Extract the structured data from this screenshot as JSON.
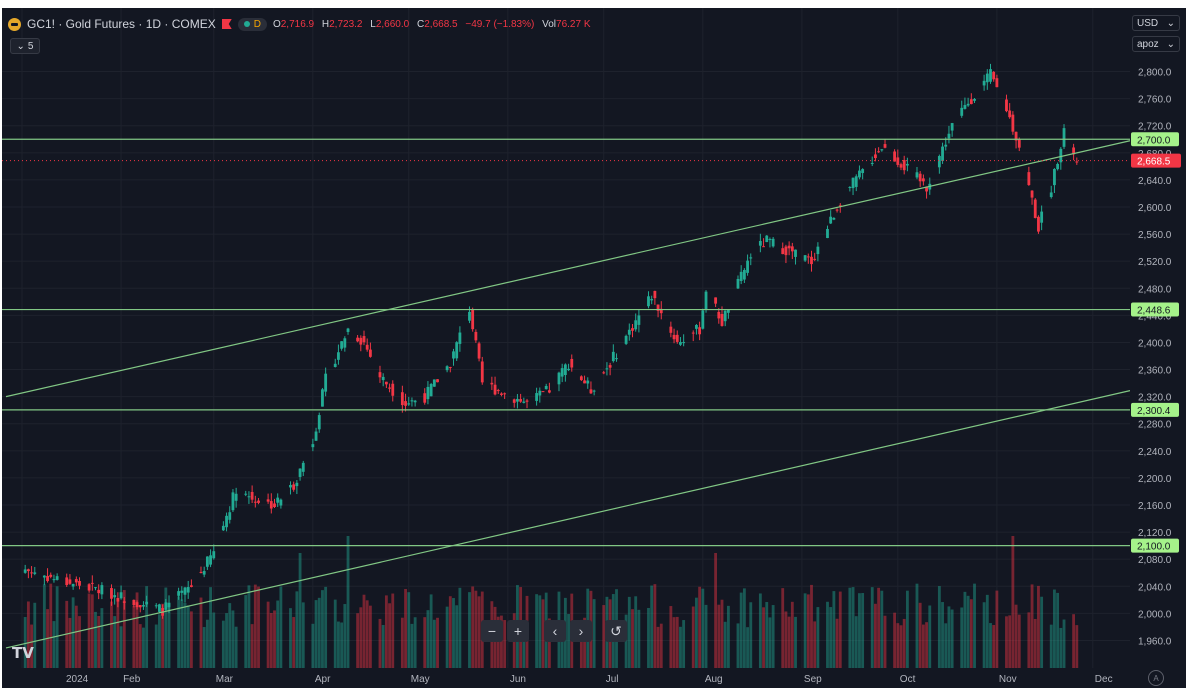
{
  "header": {
    "title": "GC1! · Gold Futures · 1D · COMEX",
    "status": "D",
    "ohlc": [
      {
        "label": "O",
        "value": "2,716.9"
      },
      {
        "label": "H",
        "value": "2,723.2"
      },
      {
        "label": "L",
        "value": "2,660.0"
      },
      {
        "label": "C",
        "value": "2,668.5"
      },
      {
        "label": "",
        "value": "−49.7 (−1.83%)"
      }
    ],
    "vol_label": "Vol",
    "vol_value": "76.27 K",
    "indicator_count": "5"
  },
  "axis_controls": {
    "currency": "USD",
    "mode": "apoz"
  },
  "colors": {
    "background": "#131722",
    "up": "#22ab94",
    "down": "#f23645",
    "line": "#81c784",
    "label": "#a5f28a"
  },
  "icons": [
    "gold-coin-icon",
    "flag-icon",
    "status-dot-icon",
    "zoom-out-icon",
    "zoom-in-icon",
    "scroll-left-icon",
    "scroll-right-icon",
    "reset-icon",
    "tradingview-logo-icon",
    "settings-icon"
  ],
  "controls": {
    "zoom_out": "−",
    "zoom_in": "+",
    "left": "‹",
    "right": "›",
    "reset": "↺"
  },
  "logo": "TV",
  "chart_data": {
    "type": "candlestick",
    "title": "GC1! · Gold Futures · 1D · COMEX",
    "y_axis": {
      "min": 1940,
      "max": 2820,
      "ticks": [
        "1,960.0",
        "2,000.0",
        "2,040.0",
        "2,080.0",
        "2,120.0",
        "2,160.0",
        "2,200.0",
        "2,240.0",
        "2,280.0",
        "2,320.0",
        "2,360.0",
        "2,400.0",
        "2,440.0",
        "2,480.0",
        "2,520.0",
        "2,560.0",
        "2,600.0",
        "2,640.0",
        "2,680.0",
        "2,720.0",
        "2,760.0",
        "2,800.0"
      ]
    },
    "x_axis": {
      "labels": [
        "2024",
        "Feb",
        "Mar",
        "Apr",
        "May",
        "Jun",
        "Jul",
        "Aug",
        "Sep",
        "Oct",
        "Nov",
        "Dec"
      ]
    },
    "last_price": "2,668.5",
    "horizontal_levels": [
      {
        "value": 2700.0,
        "label": "2,700.0"
      },
      {
        "value": 2448.6,
        "label": "2,448.6"
      },
      {
        "value": 2300.4,
        "label": "2,300.4"
      },
      {
        "value": 2100.0,
        "label": "2,100.0"
      }
    ],
    "trend_lines": [
      {
        "from": [
          "2023-12-27",
          2320
        ],
        "to": [
          "2024-11-27",
          2681
        ]
      },
      {
        "from": [
          "2023-12-27",
          1949
        ],
        "to": [
          "2024-11-27",
          2312
        ]
      }
    ],
    "price_path": [
      [
        "2024-01-02",
        2065
      ],
      [
        "2024-01-12",
        2050
      ],
      [
        "2024-01-25",
        2035
      ],
      [
        "2024-02-14",
        2005
      ],
      [
        "2024-02-23",
        2040
      ],
      [
        "2024-03-01",
        2090
      ],
      [
        "2024-03-08",
        2185
      ],
      [
        "2024-03-13",
        2170
      ],
      [
        "2024-03-20",
        2160
      ],
      [
        "2024-03-26",
        2190
      ],
      [
        "2024-04-01",
        2255
      ],
      [
        "2024-04-05",
        2345
      ],
      [
        "2024-04-12",
        2420
      ],
      [
        "2024-04-17",
        2400
      ],
      [
        "2024-04-22",
        2350
      ],
      [
        "2024-04-30",
        2310
      ],
      [
        "2024-05-06",
        2320
      ],
      [
        "2024-05-14",
        2370
      ],
      [
        "2024-05-20",
        2450
      ],
      [
        "2024-05-24",
        2340
      ],
      [
        "2024-06-07",
        2310
      ],
      [
        "2024-06-14",
        2330
      ],
      [
        "2024-06-20",
        2370
      ],
      [
        "2024-06-27",
        2330
      ],
      [
        "2024-07-03",
        2370
      ],
      [
        "2024-07-16",
        2470
      ],
      [
        "2024-07-24",
        2400
      ],
      [
        "2024-07-31",
        2420
      ],
      [
        "2024-08-02",
        2480
      ],
      [
        "2024-08-07",
        2430
      ],
      [
        "2024-08-16",
        2530
      ],
      [
        "2024-08-21",
        2550
      ],
      [
        "2024-09-04",
        2520
      ],
      [
        "2024-09-13",
        2610
      ],
      [
        "2024-09-26",
        2690
      ],
      [
        "2024-10-10",
        2630
      ],
      [
        "2024-10-18",
        2720
      ],
      [
        "2024-10-23",
        2755
      ],
      [
        "2024-10-30",
        2795
      ],
      [
        "2024-11-04",
        2745
      ],
      [
        "2024-11-08",
        2690
      ],
      [
        "2024-11-14",
        2570
      ],
      [
        "2024-11-18",
        2630
      ],
      [
        "2024-11-22",
        2715
      ],
      [
        "2024-11-25",
        2670
      ],
      [
        "2024-11-26",
        2668.5
      ]
    ],
    "volume_spikes": [
      {
        "date": "2024-03-28",
        "level": "high"
      },
      {
        "date": "2024-04-12",
        "level": "highest"
      },
      {
        "date": "2024-08-05",
        "level": "high"
      },
      {
        "date": "2024-11-06",
        "level": "highest"
      }
    ],
    "grid": true
  }
}
